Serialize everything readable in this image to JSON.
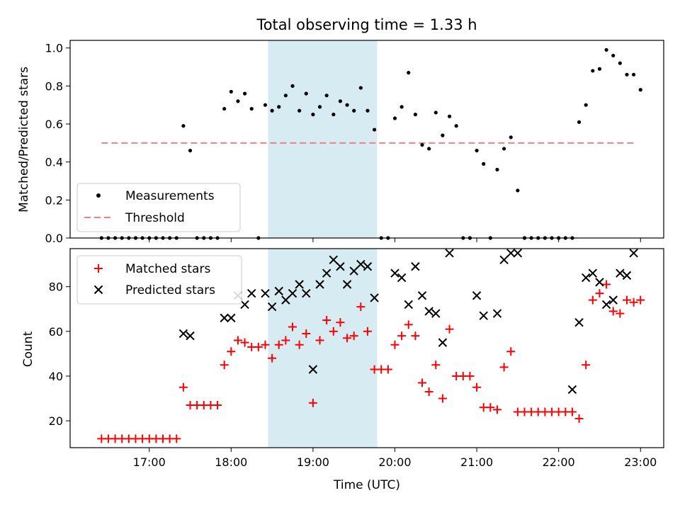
{
  "title": "Total observing time = 1.33 h",
  "xlabel": "Time (UTC)",
  "colors": {
    "measurement": "#000000",
    "threshold": "#f08080",
    "matched": "#ff0000",
    "predicted": "#000000",
    "shade": "#add8e6"
  },
  "chart_data": [
    {
      "type": "scatter",
      "ylabel": "Matched/Predicted stars",
      "ylim": [
        0,
        1.04
      ],
      "yticks": [
        0.0,
        0.2,
        0.4,
        0.6,
        0.8,
        1.0
      ],
      "ytick_labels": [
        "0.0",
        "0.2",
        "0.4",
        "0.6",
        "0.8",
        "1.0"
      ],
      "xlim": [
        "16:02",
        "23:17"
      ],
      "legend": {
        "placement": "lower left",
        "entries": [
          "Measurements",
          "Threshold"
        ]
      },
      "shaded_interval": [
        "18:27",
        "19:47"
      ],
      "threshold": {
        "name": "Threshold",
        "y": 0.5,
        "x_start": "16:25",
        "x_end": "22:55",
        "style": "dashed"
      },
      "series": [
        {
          "name": "Measurements",
          "x": [
            "16:25",
            "16:30",
            "16:35",
            "16:40",
            "16:45",
            "16:50",
            "16:55",
            "17:00",
            "17:05",
            "17:10",
            "17:15",
            "17:20",
            "17:25",
            "17:30",
            "17:35",
            "17:40",
            "17:45",
            "17:50",
            "17:55",
            "18:00",
            "18:05",
            "18:10",
            "18:15",
            "18:20",
            "18:25",
            "18:30",
            "18:35",
            "18:40",
            "18:45",
            "18:50",
            "18:55",
            "19:00",
            "19:05",
            "19:10",
            "19:15",
            "19:20",
            "19:25",
            "19:30",
            "19:35",
            "19:40",
            "19:45",
            "19:50",
            "19:55",
            "20:00",
            "20:05",
            "20:10",
            "20:15",
            "20:20",
            "20:25",
            "20:30",
            "20:35",
            "20:40",
            "20:45",
            "20:50",
            "20:55",
            "21:00",
            "21:05",
            "21:10",
            "21:15",
            "21:20",
            "21:25",
            "21:30",
            "21:35",
            "21:40",
            "21:45",
            "21:50",
            "21:55",
            "22:00",
            "22:05",
            "22:10",
            "22:15",
            "22:20",
            "22:25",
            "22:30",
            "22:35",
            "22:40",
            "22:45",
            "22:50",
            "22:55",
            "23:00"
          ],
          "y": [
            0,
            0,
            0,
            0,
            0,
            0,
            0,
            0,
            0,
            0,
            0,
            0,
            0.59,
            0.46,
            0,
            0,
            0,
            0,
            0.68,
            0.77,
            0.72,
            0.76,
            0.68,
            0,
            0.7,
            0.67,
            0.69,
            0.75,
            0.8,
            0.67,
            0.76,
            0.65,
            0.69,
            0.75,
            0.65,
            0.72,
            0.7,
            0.67,
            0.79,
            0.67,
            0.57,
            0,
            0,
            0.63,
            0.69,
            0.87,
            0.65,
            0.49,
            0.47,
            0.66,
            0.54,
            0.64,
            0.59,
            0,
            0,
            0.46,
            0.39,
            0,
            0.36,
            0.47,
            0.53,
            0.25,
            0,
            0,
            0,
            0,
            0,
            0,
            0,
            0,
            0.61,
            0.7,
            0.88,
            0.89,
            0.99,
            0.96,
            0.92,
            0.86,
            0.86,
            0.78
          ]
        }
      ]
    },
    {
      "type": "scatter",
      "ylabel": "Count",
      "ylim": [
        8,
        97
      ],
      "yticks": [
        20,
        40,
        60,
        80
      ],
      "ytick_labels": [
        "20",
        "40",
        "60",
        "80"
      ],
      "xlim": [
        "16:02",
        "23:17"
      ],
      "xticks": [
        "17:00",
        "18:00",
        "19:00",
        "20:00",
        "21:00",
        "22:00",
        "23:00"
      ],
      "xtick_labels": [
        "17:00",
        "18:00",
        "19:00",
        "20:00",
        "21:00",
        "22:00",
        "23:00"
      ],
      "legend": {
        "placement": "upper left",
        "entries": [
          "Matched stars",
          "Predicted stars"
        ]
      },
      "shaded_interval": [
        "18:27",
        "19:47"
      ],
      "series": [
        {
          "name": "Matched stars",
          "marker": "plus",
          "x": [
            "16:25",
            "16:30",
            "16:35",
            "16:40",
            "16:45",
            "16:50",
            "16:55",
            "17:00",
            "17:05",
            "17:10",
            "17:15",
            "17:20",
            "17:25",
            "17:30",
            "17:35",
            "17:40",
            "17:45",
            "17:50",
            "17:55",
            "18:00",
            "18:05",
            "18:10",
            "18:15",
            "18:20",
            "18:25",
            "18:30",
            "18:35",
            "18:40",
            "18:45",
            "18:50",
            "18:55",
            "19:00",
            "19:05",
            "19:10",
            "19:15",
            "19:20",
            "19:25",
            "19:30",
            "19:35",
            "19:40",
            "19:45",
            "19:50",
            "19:55",
            "20:00",
            "20:05",
            "20:10",
            "20:15",
            "20:20",
            "20:25",
            "20:30",
            "20:35",
            "20:40",
            "20:45",
            "20:50",
            "20:55",
            "21:00",
            "21:05",
            "21:10",
            "21:15",
            "21:20",
            "21:25",
            "21:30",
            "21:35",
            "21:40",
            "21:45",
            "21:50",
            "21:55",
            "22:00",
            "22:05",
            "22:10",
            "22:15",
            "22:20",
            "22:25",
            "22:30",
            "22:35",
            "22:40",
            "22:45",
            "22:50",
            "22:55",
            "23:00"
          ],
          "y": [
            12,
            12,
            12,
            12,
            12,
            12,
            12,
            12,
            12,
            12,
            12,
            12,
            35,
            27,
            27,
            27,
            27,
            27,
            45,
            51,
            56,
            55,
            53,
            53,
            54,
            48,
            54,
            56,
            62,
            54,
            59,
            28,
            56,
            65,
            60,
            64,
            57,
            58,
            71,
            60,
            43,
            43,
            43,
            54,
            58,
            63,
            58,
            37,
            33,
            45,
            30,
            61,
            40,
            40,
            40,
            35,
            26,
            26,
            25,
            44,
            51,
            24,
            24,
            24,
            24,
            24,
            24,
            24,
            24,
            24,
            21,
            45,
            74,
            77,
            81,
            69,
            68,
            74,
            73,
            74
          ]
        },
        {
          "name": "Predicted stars",
          "marker": "x",
          "x": [
            "17:25",
            "17:30",
            "17:55",
            "18:00",
            "18:05",
            "18:10",
            "18:15",
            "18:25",
            "18:30",
            "18:35",
            "18:40",
            "18:45",
            "18:50",
            "18:55",
            "19:00",
            "19:05",
            "19:10",
            "19:15",
            "19:20",
            "19:25",
            "19:30",
            "19:35",
            "19:40",
            "19:45",
            "20:00",
            "20:05",
            "20:10",
            "20:15",
            "20:20",
            "20:25",
            "20:30",
            "20:35",
            "20:40",
            "21:00",
            "21:05",
            "21:15",
            "21:20",
            "21:25",
            "21:30",
            "22:10",
            "22:15",
            "22:20",
            "22:25",
            "22:30",
            "22:35",
            "22:40",
            "22:45",
            "22:50",
            "22:55"
          ],
          "y": [
            59,
            58,
            66,
            66,
            76,
            72,
            77,
            77,
            71,
            78,
            74,
            77,
            81,
            77,
            43,
            81,
            86,
            92,
            89,
            81,
            87,
            90,
            89,
            75,
            86,
            84,
            72,
            89,
            76,
            69,
            68,
            55,
            95,
            76,
            67,
            68,
            92,
            95,
            95,
            34,
            64,
            84,
            86,
            82,
            72,
            74,
            86,
            85,
            95
          ]
        }
      ]
    }
  ]
}
